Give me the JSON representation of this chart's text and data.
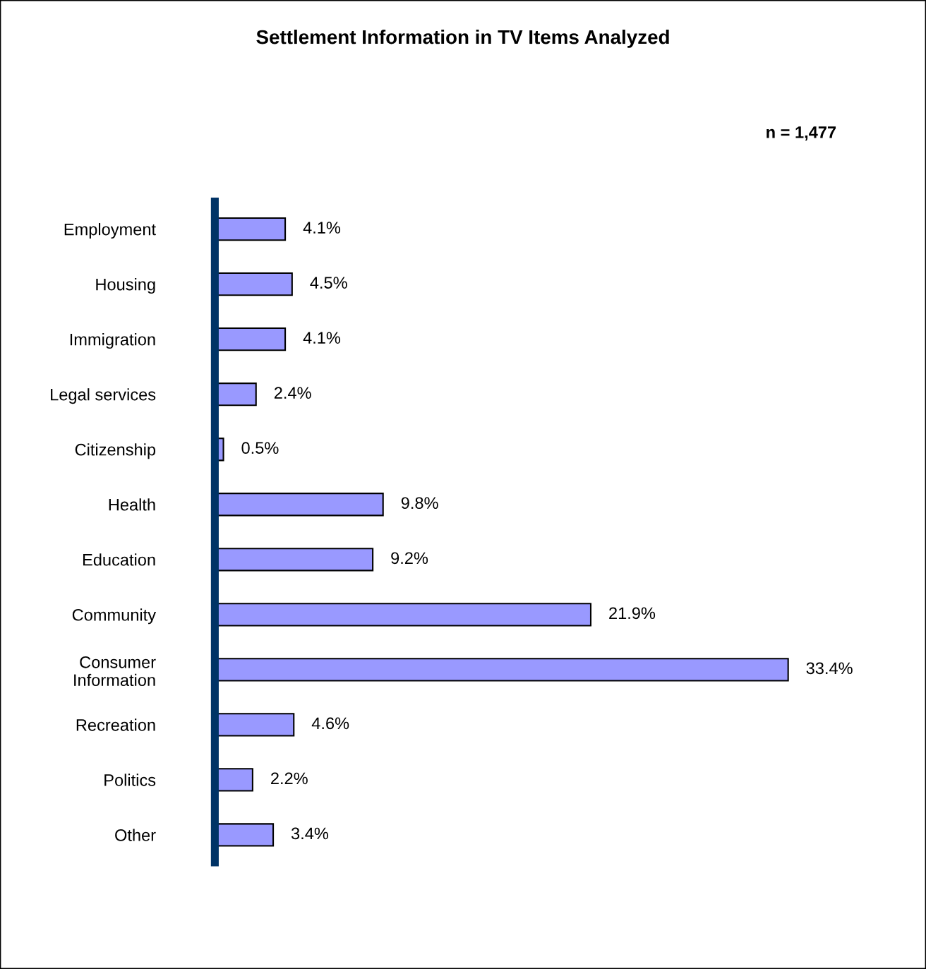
{
  "chart_data": {
    "type": "bar",
    "orientation": "horizontal",
    "title": "Settlement Information in TV Items Analyzed",
    "annotations": [
      "n = 1,477"
    ],
    "categories": [
      "Employment",
      "Housing",
      "Immigration",
      "Legal services",
      "Citizenship",
      "Health",
      "Education",
      "Community",
      "Consumer\nInformation",
      "Recreation",
      "Politics",
      "Other"
    ],
    "values": [
      4.1,
      4.5,
      4.1,
      2.4,
      0.5,
      9.8,
      9.2,
      21.9,
      33.4,
      4.6,
      2.2,
      3.4
    ],
    "value_labels": [
      "4.1%",
      "4.5%",
      "4.1%",
      "2.4%",
      "0.5%",
      "9.8%",
      "9.2%",
      "21.9%",
      "33.4%",
      "4.6%",
      "2.2%",
      "3.4%"
    ],
    "color": "#9999ff",
    "grid": false,
    "legend": false
  }
}
